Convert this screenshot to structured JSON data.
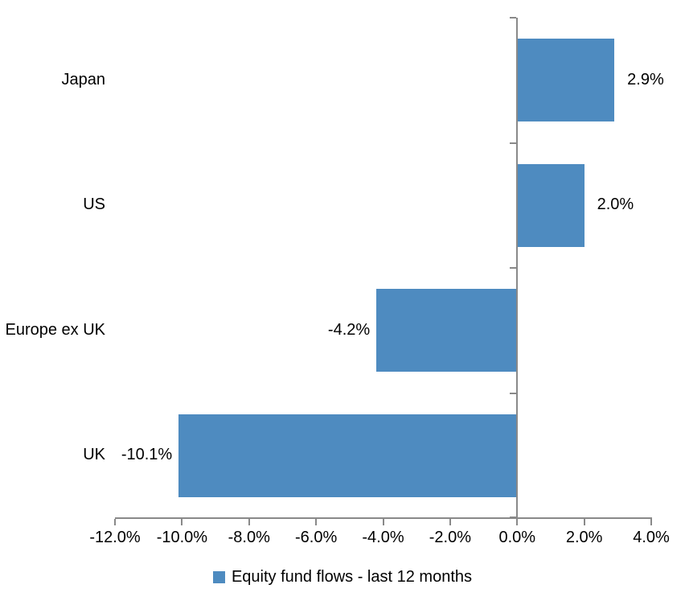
{
  "chart_data": {
    "type": "bar",
    "orientation": "horizontal",
    "title": "",
    "categories": [
      "Japan",
      "US",
      "Europe ex UK",
      "UK"
    ],
    "series": [
      {
        "name": "Equity fund flows - last 12 months",
        "values": [
          2.9,
          2.0,
          -4.2,
          -10.1
        ],
        "value_labels": [
          "2.9%",
          "2.0%",
          "-4.2%",
          "-10.1%"
        ]
      }
    ],
    "xlim": [
      -12,
      4
    ],
    "x_tick_step": 2,
    "x_tick_labels": [
      "-12.0%",
      "-10.0%",
      "-8.0%",
      "-6.0%",
      "-4.0%",
      "-2.0%",
      "0.0%",
      "2.0%",
      "4.0%"
    ],
    "grid": false,
    "legend_position": "bottom",
    "bar_color": "#4E8BC0",
    "axis_color": "#898989",
    "text_color": "#000000"
  },
  "legend": {
    "label": "Equity fund flows - last 12 months"
  }
}
